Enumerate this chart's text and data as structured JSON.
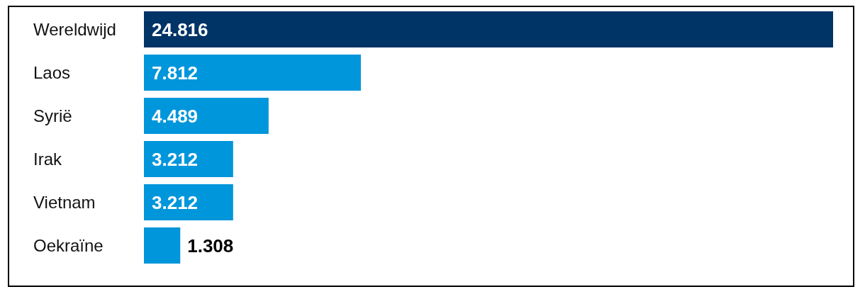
{
  "chart_data": {
    "type": "bar",
    "orientation": "horizontal",
    "categories": [
      "Wereldwijd",
      "Laos",
      "Syrië",
      "Irak",
      "Vietnam",
      "Oekraïne"
    ],
    "values": [
      24816,
      7812,
      4489,
      3212,
      3212,
      1308
    ],
    "colors": [
      "#003366",
      "#0096db",
      "#0096db",
      "#0096db",
      "#0096db",
      "#0096db"
    ],
    "value_labels": [
      "24.816",
      "7.812",
      "4.489",
      "3.212",
      "3.212",
      "1.308"
    ],
    "grid": false,
    "legend": false
  }
}
